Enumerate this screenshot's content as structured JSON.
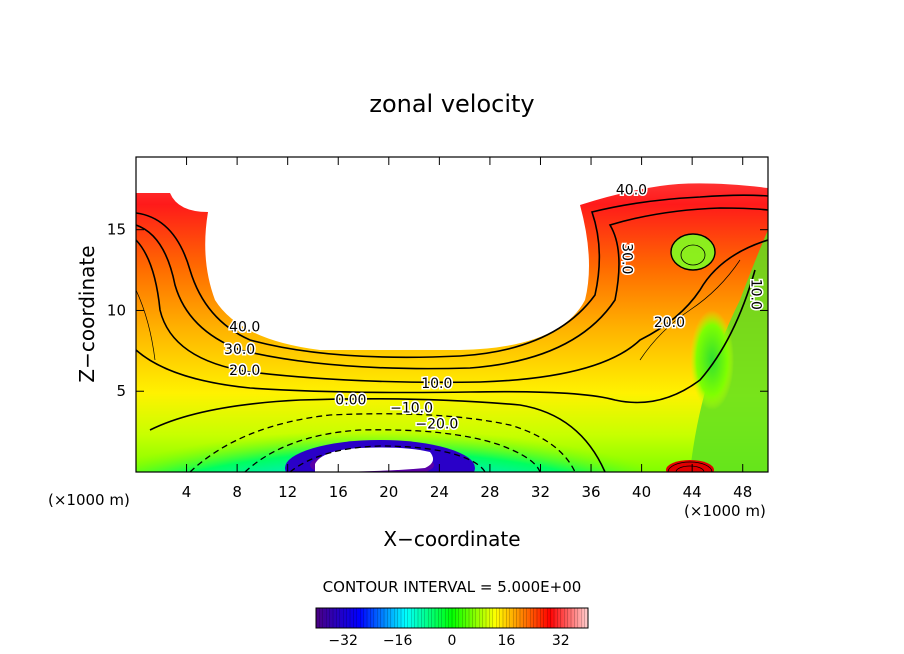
{
  "chart_data": {
    "type": "heatmap",
    "title": "zonal velocity",
    "xlabel": "X−coordinate",
    "ylabel": "Z−coordinate",
    "x_unit_left": "(×1000 m)",
    "x_unit_right": "(×1000 m)",
    "xlim": [
      0,
      50
    ],
    "ylim": [
      0,
      19.5
    ],
    "xticks": [
      4,
      8,
      12,
      16,
      20,
      24,
      28,
      32,
      36,
      40,
      44,
      48
    ],
    "yticks": [
      5,
      10,
      15
    ],
    "contour_interval_text": "CONTOUR INTERVAL = 5.000E+00",
    "contour_labels": [
      {
        "text": "40.0",
        "x": 8.6,
        "z": 9.0
      },
      {
        "text": "30.0",
        "x": 8.2,
        "z": 7.6
      },
      {
        "text": "20.0",
        "x": 8.6,
        "z": 6.3
      },
      {
        "text": "10.0",
        "x": 23.8,
        "z": 5.5
      },
      {
        "text": "0.00",
        "x": 17.0,
        "z": 4.5
      },
      {
        "text": "−10.0",
        "x": 21.8,
        "z": 4.0
      },
      {
        "text": "−20.0",
        "x": 23.8,
        "z": 3.0
      },
      {
        "text": "40.0",
        "x": 39.2,
        "z": 17.5
      },
      {
        "text": "30.0",
        "x": 38.9,
        "z": 13.2
      },
      {
        "text": "20.0",
        "x": 42.2,
        "z": 9.3
      },
      {
        "text": "10.0",
        "x": 49.1,
        "z": 11.0
      }
    ],
    "colorbar": {
      "min": -40,
      "max": 40,
      "ticks": [
        -32,
        -16,
        0,
        16,
        32
      ],
      "tick_labels": [
        "−32",
        "−16",
        "0",
        "16",
        "32"
      ]
    },
    "colormap": [
      "#4b0082",
      "#0000ff",
      "#00ffff",
      "#00ff00",
      "#ffff00",
      "#ff0000",
      "#ffffff"
    ]
  }
}
